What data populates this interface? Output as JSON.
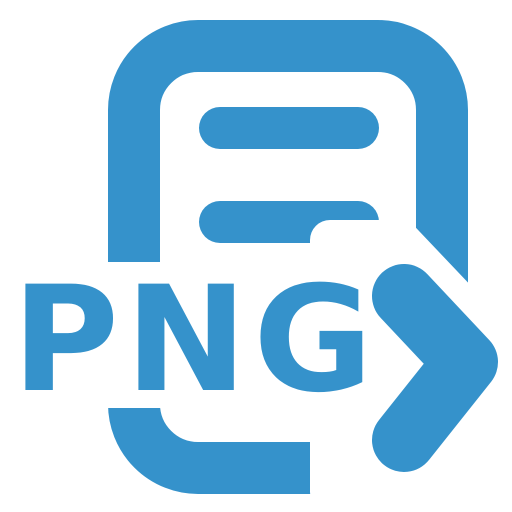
{
  "icon": {
    "name": "png-export-icon",
    "label": "PNG",
    "color": "#3592cb",
    "background": "#ffffff",
    "parts": [
      "document-icon",
      "text-line-icon",
      "chevron-right-icon"
    ]
  }
}
